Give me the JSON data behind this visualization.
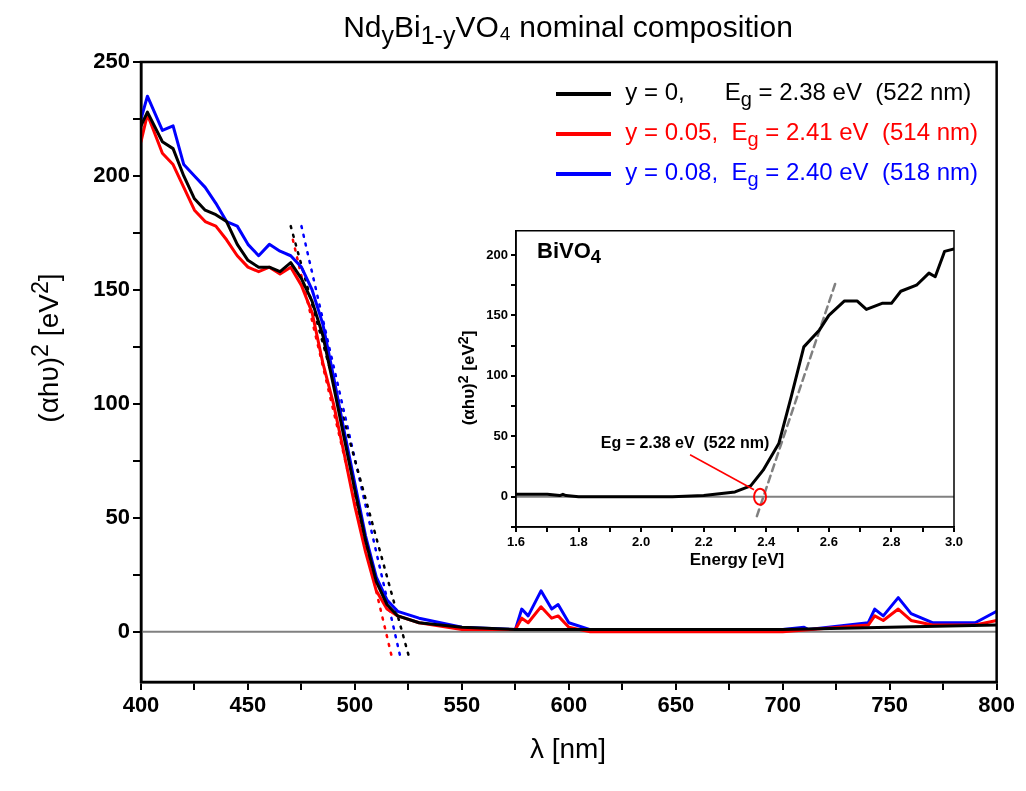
{
  "chart_data": [
    {
      "type": "line",
      "title": "Nd$_{y}$Bi$_{1-y}$VO₄ nominal composition",
      "xlabel": "λ [nm]",
      "ylabel": "(αhυ)$^{2}$ [eV$^{2}$]",
      "xlim": [
        400,
        800
      ],
      "ylim": [
        -22,
        250
      ],
      "xticks": [
        400,
        {
          "value": 425,
          "label": null
        },
        450,
        {
          "value": 475,
          "label": null
        },
        500,
        {
          "value": 525,
          "label": null
        },
        550,
        {
          "value": 575,
          "label": null
        },
        600,
        {
          "value": 625,
          "label": null
        },
        650,
        {
          "value": 675,
          "label": null
        },
        700,
        {
          "value": 725,
          "label": null
        },
        750,
        {
          "value": 775,
          "label": null
        },
        800
      ],
      "yticks": [
        0,
        {
          "value": 25,
          "label": null
        },
        50,
        {
          "value": 75,
          "label": null
        },
        100,
        {
          "value": 125,
          "label": null
        },
        150,
        {
          "value": 175,
          "label": null
        },
        200,
        {
          "value": 225,
          "label": null
        },
        250
      ],
      "grid": false,
      "legend": "top right",
      "ref_lines": [
        {
          "axis": "y",
          "value": 0,
          "color": "#808080"
        }
      ],
      "series": [
        {
          "name": "y = 0,      E$_{g}$ = 2.38 eV  (522 nm)",
          "color": "#000000",
          "x": [
            400,
            403,
            410,
            415,
            420,
            425,
            430,
            435,
            440,
            445,
            450,
            455,
            460,
            465,
            470,
            475,
            480,
            485,
            490,
            495,
            500,
            505,
            510,
            515,
            520,
            530,
            550,
            575,
            600,
            650,
            700,
            750,
            800
          ],
          "values": [
            222,
            228,
            215,
            212,
            200,
            190,
            185,
            183,
            180,
            170,
            163,
            160,
            160,
            158,
            162,
            155,
            145,
            130,
            108,
            85,
            62,
            40,
            22,
            12,
            7,
            4,
            2,
            1,
            1,
            1,
            1,
            2,
            3
          ]
        },
        {
          "name": "y = 0.05,  E$_{g}$ = 2.41 eV  (514 nm)",
          "color": "#ff0000",
          "x": [
            400,
            403,
            410,
            415,
            420,
            425,
            430,
            435,
            440,
            445,
            450,
            455,
            460,
            465,
            470,
            475,
            480,
            485,
            490,
            495,
            500,
            505,
            510,
            515,
            520,
            530,
            550,
            575,
            578,
            581,
            587,
            592,
            595,
            600,
            610,
            700,
            740,
            743,
            747,
            754,
            760,
            770,
            790,
            800
          ],
          "values": [
            215,
            227,
            210,
            205,
            195,
            185,
            180,
            178,
            172,
            165,
            160,
            158,
            160,
            157,
            160,
            152,
            140,
            118,
            100,
            78,
            55,
            35,
            18,
            10,
            7,
            4,
            1,
            1,
            6,
            4,
            11,
            6,
            7,
            2,
            0,
            0,
            3,
            7,
            5,
            10,
            5,
            3,
            3,
            5
          ]
        },
        {
          "name": "y = 0.08,  E$_{g}$ = 2.40 eV  (518 nm)",
          "color": "#0000ff",
          "x": [
            400,
            403,
            410,
            415,
            420,
            425,
            430,
            435,
            440,
            445,
            450,
            455,
            460,
            465,
            470,
            475,
            480,
            485,
            490,
            495,
            500,
            505,
            510,
            515,
            520,
            530,
            550,
            575,
            578,
            581,
            587,
            592,
            595,
            600,
            610,
            700,
            710,
            712,
            740,
            743,
            747,
            754,
            760,
            770,
            790,
            800
          ],
          "values": [
            225,
            235,
            220,
            222,
            205,
            200,
            195,
            188,
            180,
            178,
            170,
            165,
            170,
            167,
            165,
            160,
            150,
            135,
            112,
            88,
            65,
            42,
            24,
            14,
            9,
            6,
            2,
            1,
            10,
            7,
            18,
            10,
            12,
            4,
            1,
            1,
            2,
            1,
            4,
            10,
            7,
            15,
            8,
            4,
            4,
            9
          ]
        },
        {
          "type": "line",
          "color": "#000000",
          "line_style": "dotted",
          "x": [
            470,
            525
          ],
          "values": [
            178,
            -10
          ]
        },
        {
          "type": "line",
          "color": "#ff0000",
          "line_style": "dotted",
          "x": [
            471,
            517
          ],
          "values": [
            172,
            -10
          ]
        },
        {
          "type": "line",
          "color": "#0000ff",
          "line_style": "dotted",
          "x": [
            475,
            521
          ],
          "values": [
            178,
            -10
          ]
        }
      ]
    },
    {
      "type": "line",
      "xlabel": "Energy [eV]",
      "ylabel": "(αhυ)$^{2}$ [eV$^{2}$]",
      "xlim": [
        1.6,
        3.0
      ],
      "ylim": [
        -25,
        220
      ],
      "xticks": [
        {
          "value": 1.6,
          "label": "1.6"
        },
        {
          "value": 1.7,
          "label": null
        },
        {
          "value": 1.8,
          "label": "1.8"
        },
        {
          "value": 1.9,
          "label": null
        },
        {
          "value": 2.0,
          "label": "2.0"
        },
        {
          "value": 2.1,
          "label": null
        },
        {
          "value": 2.2,
          "label": "2.2"
        },
        {
          "value": 2.3,
          "label": null
        },
        {
          "value": 2.4,
          "label": "2.4"
        },
        {
          "value": 2.5,
          "label": null
        },
        {
          "value": 2.6,
          "label": "2.6"
        },
        {
          "value": 2.7,
          "label": null
        },
        {
          "value": 2.8,
          "label": "2.8"
        },
        {
          "value": 2.9,
          "label": null
        },
        {
          "value": 3.0,
          "label": "3.0"
        }
      ],
      "yticks": [
        {
          "value": -25,
          "label": null
        },
        0,
        {
          "value": 25,
          "label": null
        },
        50,
        {
          "value": 75,
          "label": null
        },
        100,
        {
          "value": 125,
          "label": null
        },
        150,
        {
          "value": 175,
          "label": null
        },
        200
      ],
      "grid": false,
      "annotations": [
        "BiVO$_{4}$",
        {
          "text": "Eg = 2.38 eV  (522 nm)",
          "x": 2.38,
          "y": 0
        }
      ],
      "ref_lines": [
        {
          "axis": "y",
          "value": 0,
          "color": "#808080"
        }
      ],
      "series": [
        {
          "color": "#000000",
          "x": [
            1.6,
            1.7,
            1.74,
            1.75,
            1.76,
            1.8,
            1.9,
            2.0,
            2.1,
            2.2,
            2.3,
            2.35,
            2.39,
            2.44,
            2.48,
            2.52,
            2.57,
            2.6,
            2.65,
            2.69,
            2.72,
            2.77,
            2.8,
            2.83,
            2.88,
            2.92,
            2.94,
            2.97,
            3.0
          ],
          "values": [
            2,
            2,
            1,
            2,
            1,
            0,
            0,
            0,
            0,
            1,
            4,
            9,
            22,
            44,
            83,
            124,
            138,
            150,
            162,
            162,
            155,
            160,
            160,
            170,
            175,
            185,
            182,
            203,
            205
          ]
        },
        {
          "type": "line",
          "color": "#808080",
          "line_style": "dashed",
          "x": [
            2.37,
            2.62
          ],
          "values": [
            -16,
            176
          ]
        }
      ]
    }
  ]
}
